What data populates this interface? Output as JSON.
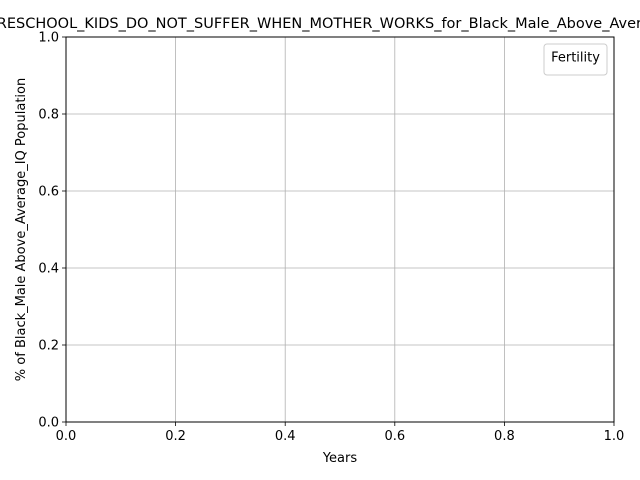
{
  "chart_data": {
    "type": "line",
    "title": "PRESCHOOL_KIDS_DO_NOT_SUFFER_WHEN_MOTHER_WORKS_for_Black_Male_Above_Average_IQ",
    "xlabel": "Years",
    "ylabel": "% of Black_Male Above_Average_IQ Population",
    "xlim": [
      0.0,
      1.0
    ],
    "ylim": [
      0.0,
      1.0
    ],
    "x_ticks": [
      "0.0",
      "0.2",
      "0.4",
      "0.6",
      "0.8",
      "1.0"
    ],
    "y_ticks": [
      "0.0",
      "0.2",
      "0.4",
      "0.6",
      "0.8",
      "1.0"
    ],
    "grid": true,
    "legend": {
      "title": "Fertility",
      "position": "top-right",
      "entries": []
    },
    "series": []
  }
}
